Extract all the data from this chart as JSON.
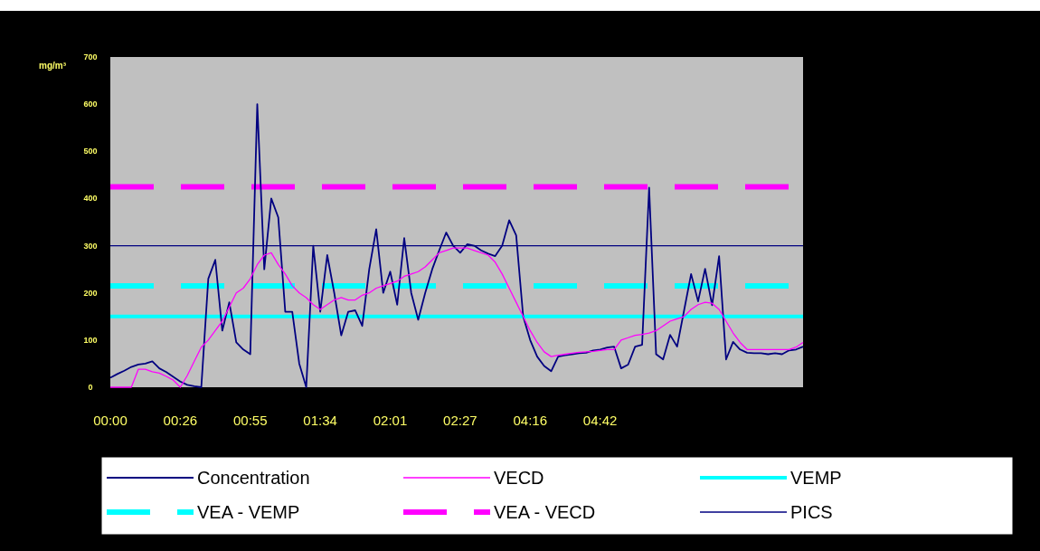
{
  "chart_data": {
    "type": "line",
    "ylabel": "mg/m³",
    "categories": [
      "00:00",
      null,
      null,
      null,
      null,
      null,
      null,
      null,
      null,
      null,
      "00:26",
      null,
      null,
      null,
      null,
      null,
      null,
      null,
      null,
      null,
      "00:55",
      null,
      null,
      null,
      null,
      null,
      null,
      null,
      null,
      null,
      "01:34",
      null,
      null,
      null,
      null,
      null,
      null,
      null,
      null,
      null,
      "02:01",
      null,
      null,
      null,
      null,
      null,
      null,
      null,
      null,
      null,
      "02:27",
      null,
      null,
      null,
      null,
      null,
      null,
      null,
      null,
      null,
      "04:16",
      null,
      null,
      null,
      null,
      null,
      null,
      null,
      null,
      null,
      "04:42",
      null,
      null,
      null,
      null,
      null,
      null,
      null,
      null,
      null,
      null,
      null,
      null,
      null,
      null,
      null,
      null,
      null,
      null,
      null,
      null,
      null,
      null,
      null,
      null,
      null,
      null,
      null,
      null,
      null
    ],
    "series": [
      {
        "name": "Concentration",
        "color": "#000080",
        "values": [
          20,
          28,
          35,
          43,
          48,
          50,
          55,
          40,
          32,
          22,
          12,
          5,
          2,
          0,
          230,
          270,
          120,
          180,
          95,
          80,
          70,
          600,
          250,
          400,
          360,
          160,
          160,
          50,
          0,
          300,
          160,
          280,
          200,
          110,
          160,
          163,
          130,
          250,
          335,
          200,
          245,
          175,
          316,
          200,
          143,
          200,
          250,
          290,
          328,
          300,
          285,
          303,
          300,
          290,
          283,
          278,
          300,
          354,
          322,
          150,
          100,
          65,
          45,
          34,
          65,
          68,
          70,
          72,
          73,
          78,
          80,
          84,
          86,
          40,
          48,
          86,
          90,
          423,
          70,
          59,
          111,
          86,
          163,
          240,
          182,
          251,
          174,
          278,
          59,
          96,
          80,
          73,
          72,
          72,
          70,
          72,
          70,
          78,
          80,
          86
        ]
      },
      {
        "name": "VECD",
        "color": "#ff00ff",
        "values": [
          0,
          0,
          0,
          0,
          38,
          38,
          33,
          30,
          23,
          15,
          0,
          25,
          55,
          85,
          100,
          120,
          140,
          170,
          200,
          210,
          230,
          260,
          280,
          285,
          260,
          240,
          215,
          200,
          190,
          175,
          165,
          175,
          185,
          190,
          185,
          185,
          195,
          200,
          210,
          215,
          220,
          225,
          235,
          240,
          245,
          255,
          270,
          285,
          290,
          295,
          295,
          295,
          290,
          285,
          280,
          265,
          240,
          210,
          180,
          150,
          120,
          95,
          75,
          65,
          68,
          70,
          72,
          74,
          75,
          76,
          78,
          80,
          80,
          100,
          105,
          110,
          112,
          115,
          120,
          130,
          140,
          145,
          150,
          165,
          175,
          180,
          178,
          165,
          140,
          115,
          95,
          80,
          80,
          80,
          80,
          80,
          80,
          80,
          85,
          95
        ]
      }
    ],
    "ref_lines": [
      {
        "axis": "y",
        "value": 150,
        "label": "VEMP",
        "color": "#00ffff",
        "line_style": "solid"
      },
      {
        "axis": "y",
        "value": 215,
        "label": "VEA - VEMP",
        "color": "#00ffff",
        "line_style": "dashed"
      },
      {
        "axis": "y",
        "value": 425,
        "label": "VEA - VECD",
        "color": "#ff00ff",
        "line_style": "dashed"
      },
      {
        "axis": "y",
        "value": 300,
        "label": "PICS",
        "color": "#000080",
        "line_style": "solid"
      }
    ],
    "ylim": [
      0,
      700
    ],
    "yticks": [
      0,
      100,
      200,
      300,
      400,
      500,
      600,
      700
    ],
    "grid": false,
    "legend": "bottom"
  }
}
